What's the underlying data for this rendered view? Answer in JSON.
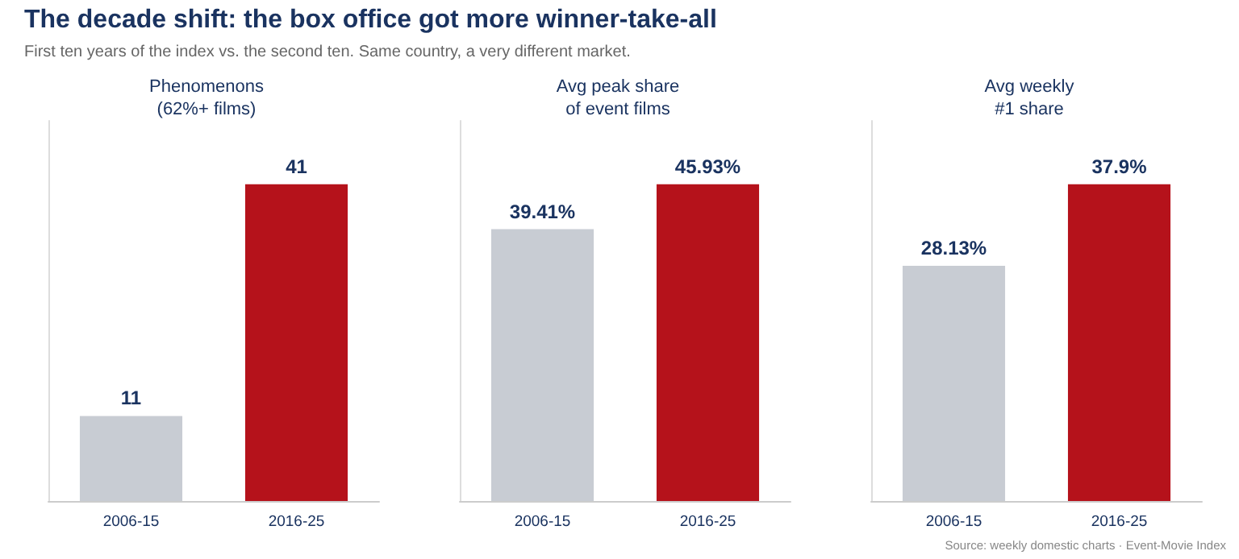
{
  "chart_data": [
    {
      "type": "other",
      "title": "The decade shift: the box office got more winner-take-all",
      "subtitle": "First ten years of the index vs. the second ten. Same country, a very different market.",
      "annotations": [
        "Source: weekly domestic charts · Event-Movie Index"
      ]
    },
    {
      "type": "bar",
      "title": "Phenomenons\n(62%+ films)",
      "categories": [
        "2006-15",
        "2016-25"
      ],
      "values": [
        11,
        41
      ],
      "colors": [
        "#c8ccd3",
        "#b5121b"
      ],
      "data_labels": true
    },
    {
      "type": "bar",
      "title": "Avg peak share\nof event films",
      "categories": [
        "2006-15",
        "2016-25"
      ],
      "values": [
        39.41,
        45.93
      ],
      "colors": [
        "#c8ccd3",
        "#b5121b"
      ],
      "value_labels": [
        "39.41%",
        "45.93%"
      ]
    },
    {
      "type": "bar",
      "title": "Avg weekly\n#1 share",
      "categories": [
        "2006-15",
        "2016-25"
      ],
      "values": [
        28.13,
        37.9
      ],
      "colors": [
        "#c8ccd3",
        "#b5121b"
      ],
      "value_labels": [
        "28.13%",
        "37.9%"
      ]
    }
  ]
}
